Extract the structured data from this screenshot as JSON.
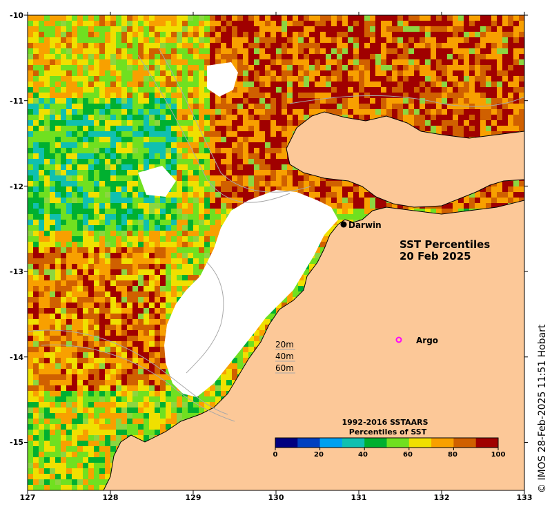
{
  "map": {
    "title_line1": "SST Percentiles",
    "title_line2": "20 Feb 2025",
    "x_ticks": [
      "127",
      "128",
      "129",
      "130",
      "131",
      "132",
      "133"
    ],
    "y_ticks": [
      "-10",
      "-11",
      "-12",
      "-13",
      "-14",
      "-15"
    ],
    "places": {
      "darwin": "Darwin",
      "argo": "Argo"
    },
    "depth_legend": [
      "20m",
      "40m",
      "60m"
    ],
    "colorbar": {
      "title_line1": "1992-2016 SSTAARS",
      "title_line2": "Percentiles of SST",
      "labels": [
        "0",
        "20",
        "40",
        "60",
        "80",
        "100"
      ],
      "colors": [
        "#000080",
        "#0040c0",
        "#00a0f0",
        "#10c0b0",
        "#00b030",
        "#70e020",
        "#f0e000",
        "#f8a000",
        "#d06000",
        "#a00000"
      ]
    },
    "colors": {
      "land": "#fcc898",
      "nodata": "#ffffff",
      "contour": "#a8a8a8",
      "argo_marker": "#ff00ff"
    },
    "credit": "© IMOS 28-Feb-2025 11:51 Hobart"
  }
}
